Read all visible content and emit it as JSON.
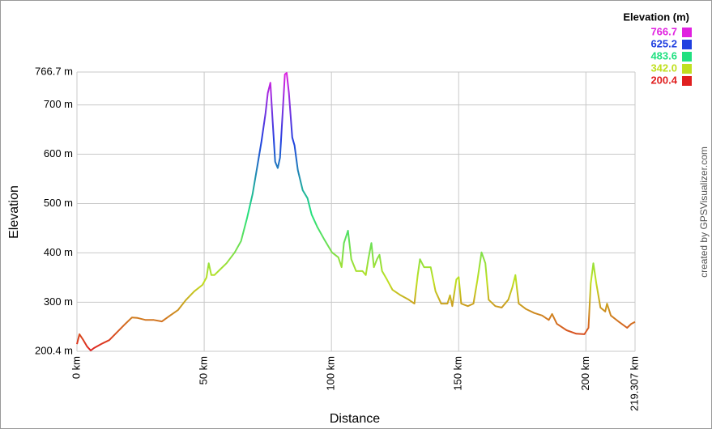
{
  "chart_data": {
    "type": "line",
    "x_label": "Distance",
    "y_label": "Elevation",
    "credit": "created by GPSVisualizer.com",
    "legend_title": "Elevation (m)",
    "legend": [
      {
        "value": 766.7,
        "color": "#e020e0"
      },
      {
        "value": 625.2,
        "color": "#2040e0"
      },
      {
        "value": 483.6,
        "color": "#20e080"
      },
      {
        "value": 342,
        "label": "342.0",
        "color": "#c0e020"
      },
      {
        "value": 200.4,
        "color": "#e02020"
      }
    ],
    "x": [
      0,
      1,
      2.5,
      4,
      5.4,
      6.7,
      9.5,
      12.7,
      15.9,
      19,
      21.6,
      23.8,
      27,
      30.2,
      33.4,
      36.6,
      39.7,
      42.9,
      46.1,
      49.3,
      50.9,
      51.8,
      52.8,
      54,
      55.6,
      58.8,
      62,
      64.5,
      66.8,
      69,
      70.9,
      72.5,
      74.1,
      75,
      76,
      76.9,
      77.9,
      78.9,
      79.8,
      80.8,
      81.7,
      82.4,
      83.3,
      84.6,
      85.5,
      86.8,
      88.7,
      90.6,
      92.2,
      94.4,
      97,
      100.2,
      102.7,
      104,
      104.9,
      106.5,
      107.8,
      109.7,
      112.2,
      113.5,
      114.5,
      115.7,
      116.7,
      117.9,
      118.9,
      119.9,
      121.8,
      124,
      127.2,
      130.4,
      132.6,
      133.9,
      134.8,
      136.4,
      139,
      140.9,
      143.1,
      145.6,
      146.6,
      147.5,
      149.1,
      150,
      151,
      153.6,
      155.8,
      157.4,
      159,
      160.5,
      161.8,
      164.4,
      166.9,
      169.5,
      171.1,
      172.3,
      173.6,
      176.5,
      179.7,
      182.8,
      185.4,
      186.7,
      188.6,
      192.4,
      196.2,
      199.4,
      201,
      201.9,
      202.9,
      204.1,
      205.7,
      207.6,
      208.3,
      209.8,
      213,
      216.2,
      217.8,
      219.3
    ],
    "values": [
      215,
      235,
      223,
      210,
      202,
      207,
      215,
      223,
      240,
      256,
      269,
      268,
      264,
      264,
      261,
      273,
      284,
      305,
      322,
      335,
      350,
      379,
      355,
      355,
      363,
      379,
      401,
      424,
      470,
      519,
      576,
      626,
      683,
      724,
      745,
      667,
      585,
      572,
      593,
      683,
      762,
      765,
      724,
      634,
      618,
      568,
      527,
      511,
      478,
      453,
      429,
      401,
      391,
      371,
      420,
      445,
      387,
      363,
      363,
      355,
      387,
      420,
      371,
      387,
      396,
      363,
      346,
      325,
      314,
      305,
      297,
      355,
      387,
      371,
      371,
      322,
      297,
      297,
      314,
      292,
      346,
      351,
      297,
      292,
      297,
      346,
      401,
      379,
      305,
      292,
      289,
      305,
      330,
      355,
      297,
      286,
      278,
      273,
      264,
      276,
      256,
      243,
      236,
      235,
      248,
      338,
      379,
      338,
      289,
      281,
      297,
      273,
      260,
      248,
      256,
      260
    ],
    "xlim": [
      0,
      219.307
    ],
    "ylim": [
      200.4,
      766.7
    ],
    "xticks": [
      {
        "value": 0,
        "label": "0 km"
      },
      {
        "value": 50,
        "label": "50 km"
      },
      {
        "value": 100,
        "label": "100 km"
      },
      {
        "value": 150,
        "label": "150 km"
      },
      {
        "value": 200,
        "label": "200 km"
      },
      {
        "value": 219.307,
        "label": "219.307 km"
      }
    ],
    "yticks": [
      {
        "value": 200.4,
        "label": "200.4 m"
      },
      {
        "value": 300,
        "label": "300 m"
      },
      {
        "value": 400,
        "label": "400 m"
      },
      {
        "value": 500,
        "label": "500 m"
      },
      {
        "value": 600,
        "label": "600 m"
      },
      {
        "value": 700,
        "label": "700 m"
      },
      {
        "value": 766.7,
        "label": "766.7 m"
      }
    ],
    "grid": true
  }
}
